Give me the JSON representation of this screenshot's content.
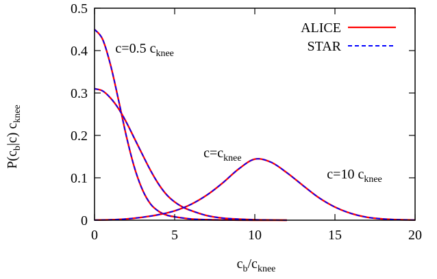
{
  "chart_data": {
    "type": "line",
    "title": "",
    "xlabel": {
      "main": "c",
      "sub1": "b",
      "mid": "/c",
      "sub2": "knee"
    },
    "ylabel": {
      "p1": "P(c",
      "sub1": "b",
      "p2": "|c) c",
      "sub2": "knee"
    },
    "xlim": [
      0,
      20
    ],
    "ylim": [
      0,
      0.5
    ],
    "x_ticks": [
      0,
      5,
      10,
      15,
      20
    ],
    "x_tick_labels": [
      "0",
      "5",
      "10",
      "15",
      "20"
    ],
    "y_ticks": [
      0,
      0.1,
      0.2,
      0.3,
      0.4,
      0.5
    ],
    "y_tick_labels": [
      "0",
      "0.1",
      "0.2",
      "0.3",
      "0.4",
      "0.5"
    ],
    "grid": false,
    "legend_position": "top-right",
    "legend": [
      {
        "label": "ALICE",
        "color": "#ff0000",
        "style": "solid"
      },
      {
        "label": "STAR",
        "color": "#0000ff",
        "style": "dashed"
      }
    ],
    "annotations": [
      {
        "main": "c=0.5 c",
        "sub": "knee",
        "x": 1.3,
        "y": 0.395
      },
      {
        "main": "c=c",
        "sub": "knee",
        "x": 6.8,
        "y": 0.148
      },
      {
        "main": "c=10 c",
        "sub": "knee",
        "x": 14.5,
        "y": 0.098
      }
    ],
    "series_groups": [
      {
        "group": "c=0.5 c_knee",
        "x": [
          0,
          0.5,
          1,
          1.5,
          2,
          2.5,
          3,
          3.5,
          4,
          4.5,
          5,
          6,
          7,
          8,
          9,
          10,
          11,
          12
        ],
        "y": [
          0.45,
          0.427,
          0.366,
          0.283,
          0.196,
          0.123,
          0.071,
          0.038,
          0.021,
          0.012,
          0.008,
          0.003,
          0.0012,
          0.0005,
          0.0002,
          0,
          0,
          0
        ]
      },
      {
        "group": "c=c_knee",
        "x": [
          0,
          0.5,
          1,
          1.5,
          2,
          2.5,
          3,
          3.5,
          4,
          4.5,
          5,
          5.5,
          6,
          7,
          8,
          9,
          10,
          11,
          12
        ],
        "y": [
          0.31,
          0.305,
          0.288,
          0.263,
          0.23,
          0.192,
          0.154,
          0.117,
          0.085,
          0.06,
          0.043,
          0.031,
          0.023,
          0.011,
          0.005,
          0.0025,
          0.001,
          0.0005,
          0
        ]
      },
      {
        "group": "c=10 c_knee",
        "x": [
          0,
          1,
          2,
          3,
          4,
          5,
          6,
          7,
          8,
          9,
          10,
          11,
          12,
          13,
          14,
          15,
          16,
          17,
          18,
          19,
          20
        ],
        "y": [
          0.0003,
          0.001,
          0.003,
          0.007,
          0.013,
          0.022,
          0.037,
          0.059,
          0.088,
          0.121,
          0.144,
          0.137,
          0.112,
          0.082,
          0.053,
          0.031,
          0.016,
          0.007,
          0.003,
          0.0012,
          0.0004
        ]
      }
    ]
  }
}
